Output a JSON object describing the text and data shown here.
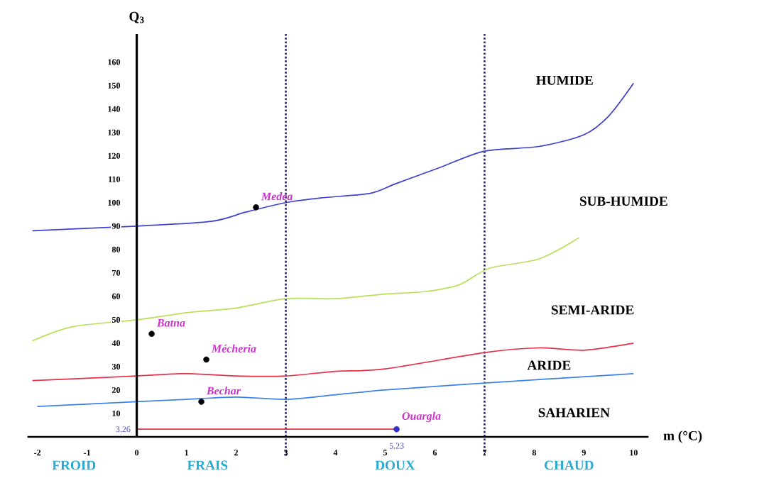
{
  "chart_data": {
    "type": "line",
    "xlabel": "m (°C)",
    "ylabel": "Q$_{3}$",
    "xlim": [
      -2.2,
      10.3
    ],
    "ylim": [
      0,
      172
    ],
    "xticks": [
      -2,
      -1,
      0,
      1,
      2,
      3,
      4,
      5,
      6,
      7,
      8,
      9,
      10
    ],
    "yticks": [
      10,
      20,
      30,
      40,
      50,
      60,
      70,
      80,
      90,
      100,
      110,
      120,
      130,
      140,
      150,
      160
    ],
    "grid": false,
    "line_style": "solid",
    "series": [
      {
        "color": "#4040d0",
        "marker": "none",
        "x": [
          -2.1,
          0,
          1.5,
          2.2,
          3,
          3.7,
          4.7,
          5.2,
          6.1,
          7,
          8.1,
          9,
          9.5,
          10
        ],
        "values": [
          88,
          90,
          92,
          96,
          100,
          102,
          104,
          108,
          115,
          122,
          124,
          129,
          137,
          151
        ]
      },
      {
        "color": "#b8e05a",
        "marker": "none",
        "x": [
          -2.1,
          -1.3,
          0,
          1,
          2,
          3,
          4,
          5,
          5.8,
          6.5,
          7.1,
          8.1,
          8.9
        ],
        "values": [
          41,
          47,
          50,
          53,
          55,
          59,
          59,
          61,
          62,
          65,
          72,
          76,
          85
        ]
      },
      {
        "color": "#e8304a",
        "marker": "none",
        "x": [
          -2.1,
          0,
          1,
          2,
          3,
          4,
          5,
          7,
          8.1,
          9,
          10
        ],
        "values": [
          24,
          26,
          27,
          26,
          26,
          28,
          29,
          36,
          38,
          37,
          40
        ]
      },
      {
        "color": "#3d82e8",
        "marker": "none",
        "x": [
          -2,
          0,
          1,
          2,
          3,
          4,
          5,
          7,
          10
        ],
        "values": [
          13,
          15,
          16,
          17,
          16,
          18,
          20,
          23,
          27
        ]
      },
      {
        "color": "#e8304a",
        "marker": "none",
        "x": [
          0,
          5.23
        ],
        "values": [
          3.26,
          3.26
        ]
      },
      {
        "type": "scatter",
        "name": "Medea",
        "color": "#000000",
        "marker": "circle",
        "x": [
          2.4
        ],
        "values": [
          98
        ]
      },
      {
        "type": "scatter",
        "name": "Batna",
        "color": "#000000",
        "marker": "circle",
        "x": [
          0.3
        ],
        "values": [
          44
        ]
      },
      {
        "type": "scatter",
        "name": "Mécheria",
        "color": "#000000",
        "marker": "circle",
        "x": [
          1.4
        ],
        "values": [
          33
        ]
      },
      {
        "type": "scatter",
        "name": "Bechar",
        "color": "#000000",
        "marker": "circle",
        "x": [
          1.3
        ],
        "values": [
          15
        ]
      },
      {
        "type": "scatter",
        "name": "Ouargla",
        "color": "#3030d0",
        "marker": "circle",
        "x": [
          5.23
        ],
        "values": [
          3.26
        ]
      }
    ],
    "ref_lines": [
      {
        "axis": "x",
        "value": 3,
        "color": "#2b2b7a",
        "line_style": "dotted"
      },
      {
        "axis": "x",
        "value": 7,
        "color": "#2b2b7a",
        "line_style": "dotted"
      }
    ],
    "annotations": [
      "HUMIDE",
      "SUB-HUMIDE",
      "SEMI-ARIDE",
      "ARIDE",
      "SAHARIEN",
      "FROID",
      "FRAIS",
      "DOUX",
      "CHAUD",
      {
        "text": "3.26",
        "x": 0,
        "y": 3.26
      },
      {
        "text": "5.23",
        "x": 5.23,
        "y": 3.26
      }
    ]
  }
}
